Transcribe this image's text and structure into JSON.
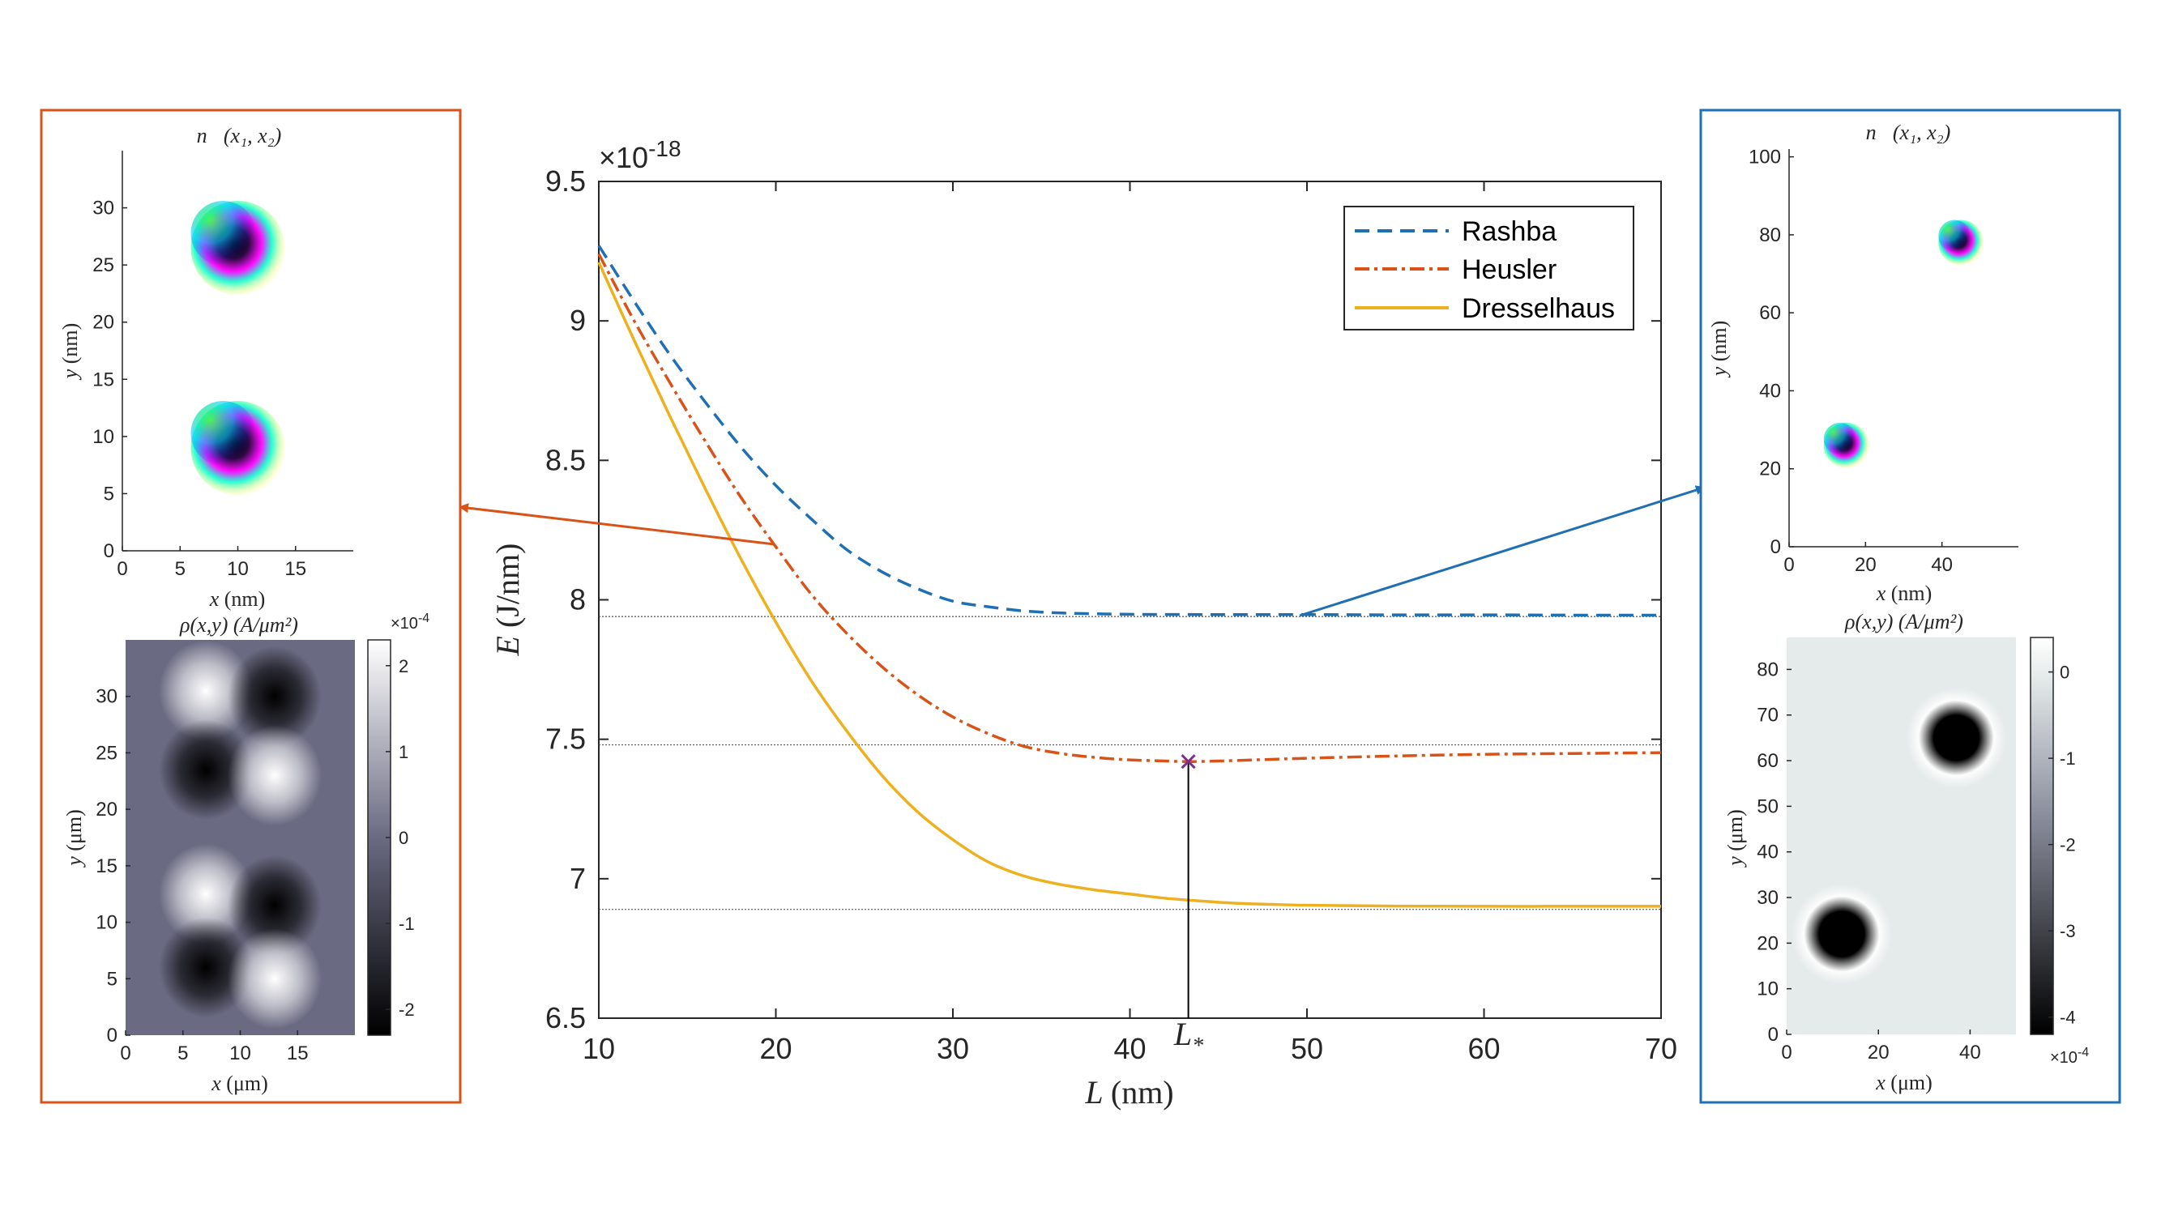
{
  "chart_data": [
    {
      "type": "line",
      "title": "",
      "xlabel": "L (nm)",
      "ylabel": "E (J/nm)",
      "y_exponent_label": "×10",
      "y_exponent_power": "-18",
      "xlim": [
        10,
        70
      ],
      "ylim": [
        6.5,
        9.5
      ],
      "xticks": [
        "10",
        "20",
        "30",
        "40",
        "50",
        "60",
        "70"
      ],
      "yticks": [
        "6.5",
        "7",
        "7.5",
        "8",
        "8.5",
        "9",
        "9.5"
      ],
      "marker_label": "L*",
      "marker": {
        "x": 43.3,
        "y": 7.42
      },
      "reference_lines": [
        7.94,
        7.48,
        6.89
      ],
      "legend": {
        "position": "top-right",
        "entries": [
          "Rashba",
          "Heusler",
          "Dresselhaus"
        ]
      },
      "series": [
        {
          "name": "Rashba",
          "color": "#1f6fb4",
          "style": "dashed",
          "x": [
            10,
            12,
            14,
            16,
            18,
            20,
            22,
            24,
            26,
            28,
            30,
            32,
            34,
            36,
            38,
            40,
            45,
            50,
            55,
            60,
            65,
            70
          ],
          "y": [
            9.27,
            9.07,
            8.88,
            8.71,
            8.55,
            8.41,
            8.29,
            8.18,
            8.1,
            8.04,
            7.995,
            7.975,
            7.96,
            7.953,
            7.95,
            7.948,
            7.947,
            7.947,
            7.946,
            7.946,
            7.945,
            7.945
          ]
        },
        {
          "name": "Heusler",
          "color": "#d95319",
          "style": "dashdot",
          "x": [
            10,
            12,
            14,
            16,
            18,
            20,
            22,
            24,
            26,
            28,
            30,
            32,
            34,
            36,
            38,
            40,
            42,
            43.3,
            45,
            48,
            50,
            55,
            60,
            65,
            70
          ],
          "y": [
            9.24,
            9.0,
            8.78,
            8.57,
            8.37,
            8.19,
            8.02,
            7.88,
            7.76,
            7.66,
            7.58,
            7.52,
            7.475,
            7.45,
            7.435,
            7.426,
            7.422,
            7.42,
            7.422,
            7.428,
            7.432,
            7.44,
            7.446,
            7.449,
            7.452
          ]
        },
        {
          "name": "Dresselhaus",
          "color": "#edb120",
          "style": "solid",
          "x": [
            10,
            12,
            14,
            16,
            18,
            20,
            22,
            24,
            26,
            28,
            30,
            32,
            34,
            36,
            38,
            40,
            42,
            44,
            46,
            48,
            50,
            55,
            60,
            65,
            70
          ],
          "y": [
            9.21,
            8.93,
            8.66,
            8.4,
            8.15,
            7.92,
            7.71,
            7.53,
            7.37,
            7.24,
            7.14,
            7.06,
            7.01,
            6.98,
            6.96,
            6.945,
            6.93,
            6.92,
            6.912,
            6.908,
            6.905,
            6.902,
            6.901,
            6.901,
            6.901
          ]
        }
      ]
    },
    {
      "type": "scatter",
      "title": "n⃗(x₁, x₂)",
      "xlabel": "x (nm)",
      "ylabel": "y (nm)",
      "xlim": [
        0,
        20
      ],
      "ylim": [
        0,
        35
      ],
      "xticks": [
        "0",
        "5",
        "10",
        "15"
      ],
      "yticks": [
        "0",
        "5",
        "10",
        "15",
        "20",
        "25",
        "30"
      ],
      "skyrmions": [
        {
          "x": 10,
          "y": 9
        },
        {
          "x": 10,
          "y": 26.5
        }
      ]
    },
    {
      "type": "heatmap",
      "title": "ρ(x,y) (A/μm²)",
      "xlabel": "x (μm)",
      "ylabel": "y (μm)",
      "xlim": [
        0,
        20
      ],
      "ylim": [
        0,
        35
      ],
      "xticks": [
        "0",
        "5",
        "10",
        "15"
      ],
      "yticks": [
        "0",
        "5",
        "10",
        "15",
        "20",
        "25",
        "30"
      ],
      "colorbar": {
        "exponent_label": "×10",
        "exponent_power": "-4",
        "range": [
          -2.3,
          2.3
        ],
        "ticks": [
          "2",
          "1",
          "0",
          "-1",
          "-2"
        ]
      },
      "peaks": [
        {
          "x": 7,
          "y": 30.5,
          "value": 2.2
        },
        {
          "x": 13,
          "y": 30,
          "value": -2.2
        },
        {
          "x": 7,
          "y": 23.5,
          "value": -2.2
        },
        {
          "x": 13,
          "y": 23,
          "value": 2.2
        },
        {
          "x": 7,
          "y": 12.5,
          "value": 2.2
        },
        {
          "x": 13,
          "y": 11.5,
          "value": -2.2
        },
        {
          "x": 7,
          "y": 6,
          "value": -2.2
        },
        {
          "x": 13,
          "y": 5,
          "value": 2.2
        }
      ]
    },
    {
      "type": "scatter",
      "title": "n⃗(x₁, x₂)",
      "xlabel": "x (nm)",
      "ylabel": "y (nm)",
      "xlim": [
        0,
        60
      ],
      "ylim": [
        0,
        102
      ],
      "xticks": [
        "0",
        "20",
        "40"
      ],
      "yticks": [
        "0",
        "20",
        "40",
        "60",
        "80",
        "100"
      ],
      "skyrmions": [
        {
          "x": 15,
          "y": 26
        },
        {
          "x": 45,
          "y": 78
        }
      ]
    },
    {
      "type": "heatmap",
      "title": "ρ(x,y) (A/μm²)",
      "xlabel": "x (μm)",
      "ylabel": "y (μm)",
      "xlim": [
        0,
        50
      ],
      "ylim": [
        0,
        87
      ],
      "xticks": [
        "0",
        "20",
        "40"
      ],
      "yticks": [
        "0",
        "10",
        "20",
        "30",
        "40",
        "50",
        "60",
        "70",
        "80"
      ],
      "colorbar": {
        "exponent_label": "×10",
        "exponent_power": "-4",
        "range": [
          -4.2,
          0.4
        ],
        "ticks": [
          "0",
          "-1",
          "-2",
          "-3",
          "-4"
        ]
      },
      "peaks": [
        {
          "x": 12,
          "y": 22,
          "value": -4.2
        },
        {
          "x": 37,
          "y": 65,
          "value": -4.2
        }
      ]
    }
  ]
}
